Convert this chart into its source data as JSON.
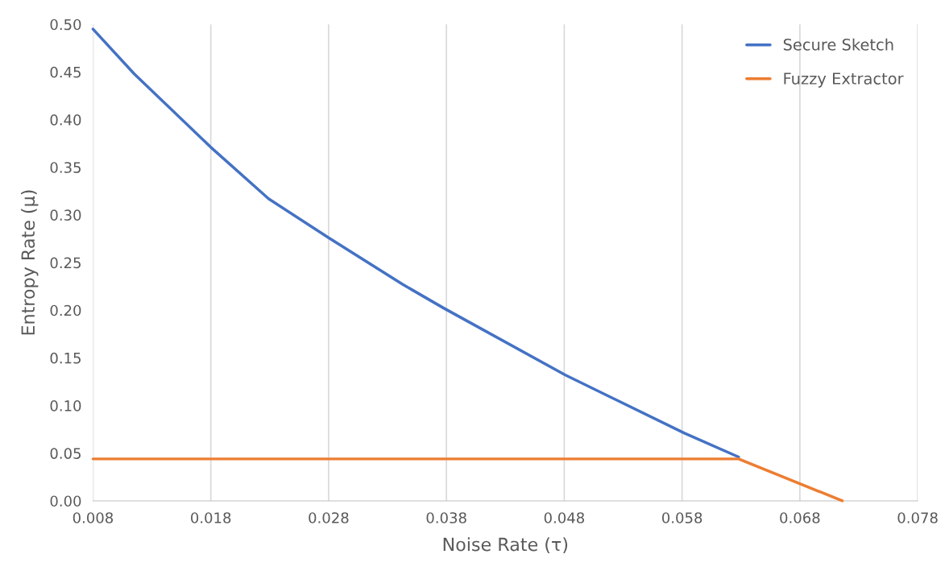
{
  "chart_data": {
    "type": "line",
    "xlabel": "Noise Rate (τ)",
    "ylabel": "Entropy Rate (μ)",
    "series": [
      {
        "name": "Secure Sketch",
        "color": "#4472c4",
        "x": [
          0.008,
          0.0115,
          0.018,
          0.0229,
          0.028,
          0.0343,
          0.0378,
          0.0481,
          0.0582,
          0.0628
        ],
        "values": [
          0.495,
          0.448,
          0.371,
          0.317,
          0.276,
          0.227,
          0.202,
          0.132,
          0.071,
          0.046
        ]
      },
      {
        "name": "Fuzzy Extractor",
        "color": "#ed7d31",
        "x": [
          0.008,
          0.0628,
          0.0682,
          0.0716
        ],
        "values": [
          0.044,
          0.044,
          0.017,
          0.0
        ]
      }
    ],
    "xlim": [
      0.008,
      0.078
    ],
    "xticks": [
      0.008,
      0.018,
      0.028,
      0.038,
      0.048,
      0.058,
      0.068,
      0.078
    ],
    "ylim": [
      0,
      0.5
    ],
    "yticks": [
      {
        "value": 0,
        "label": "0.00"
      },
      {
        "value": 0.05,
        "label": "0.05"
      },
      {
        "value": 0.1,
        "label": "0.10"
      },
      {
        "value": 0.15,
        "label": "0.15"
      },
      {
        "value": 0.2,
        "label": "0.20"
      },
      {
        "value": 0.25,
        "label": "0.25"
      },
      {
        "value": 0.3,
        "label": "0.30"
      },
      {
        "value": 0.35,
        "label": "0.35"
      },
      {
        "value": 0.4,
        "label": "0.40"
      },
      {
        "value": 0.45,
        "label": "0.45"
      },
      {
        "value": 0.5,
        "label": "0.50"
      }
    ],
    "grid": "x",
    "legend": "top right"
  }
}
